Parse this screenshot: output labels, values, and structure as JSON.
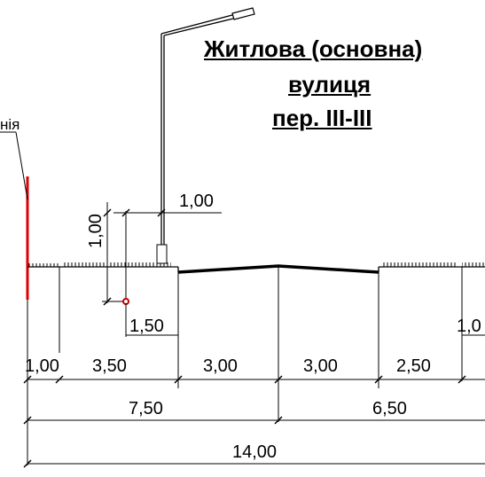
{
  "title": {
    "line1": "Житлова (основна)",
    "line2": "вулиця",
    "line3": "пер. III-III"
  },
  "labels": {
    "side_fragment": "нія",
    "lamp_offset": "1,00",
    "lamp_height": "1,00",
    "post_offset": "1,50",
    "right_edge_fragment": "1,0"
  },
  "dimensions": {
    "row1": [
      "1,00",
      "3,50",
      "3,00",
      "3,00",
      "2,50"
    ],
    "row2": [
      "7,50",
      "6,50"
    ],
    "row3": [
      "14,00"
    ]
  },
  "colors": {
    "line": "#000000",
    "property_line": "#e00000",
    "post_marker": "#c00000"
  }
}
